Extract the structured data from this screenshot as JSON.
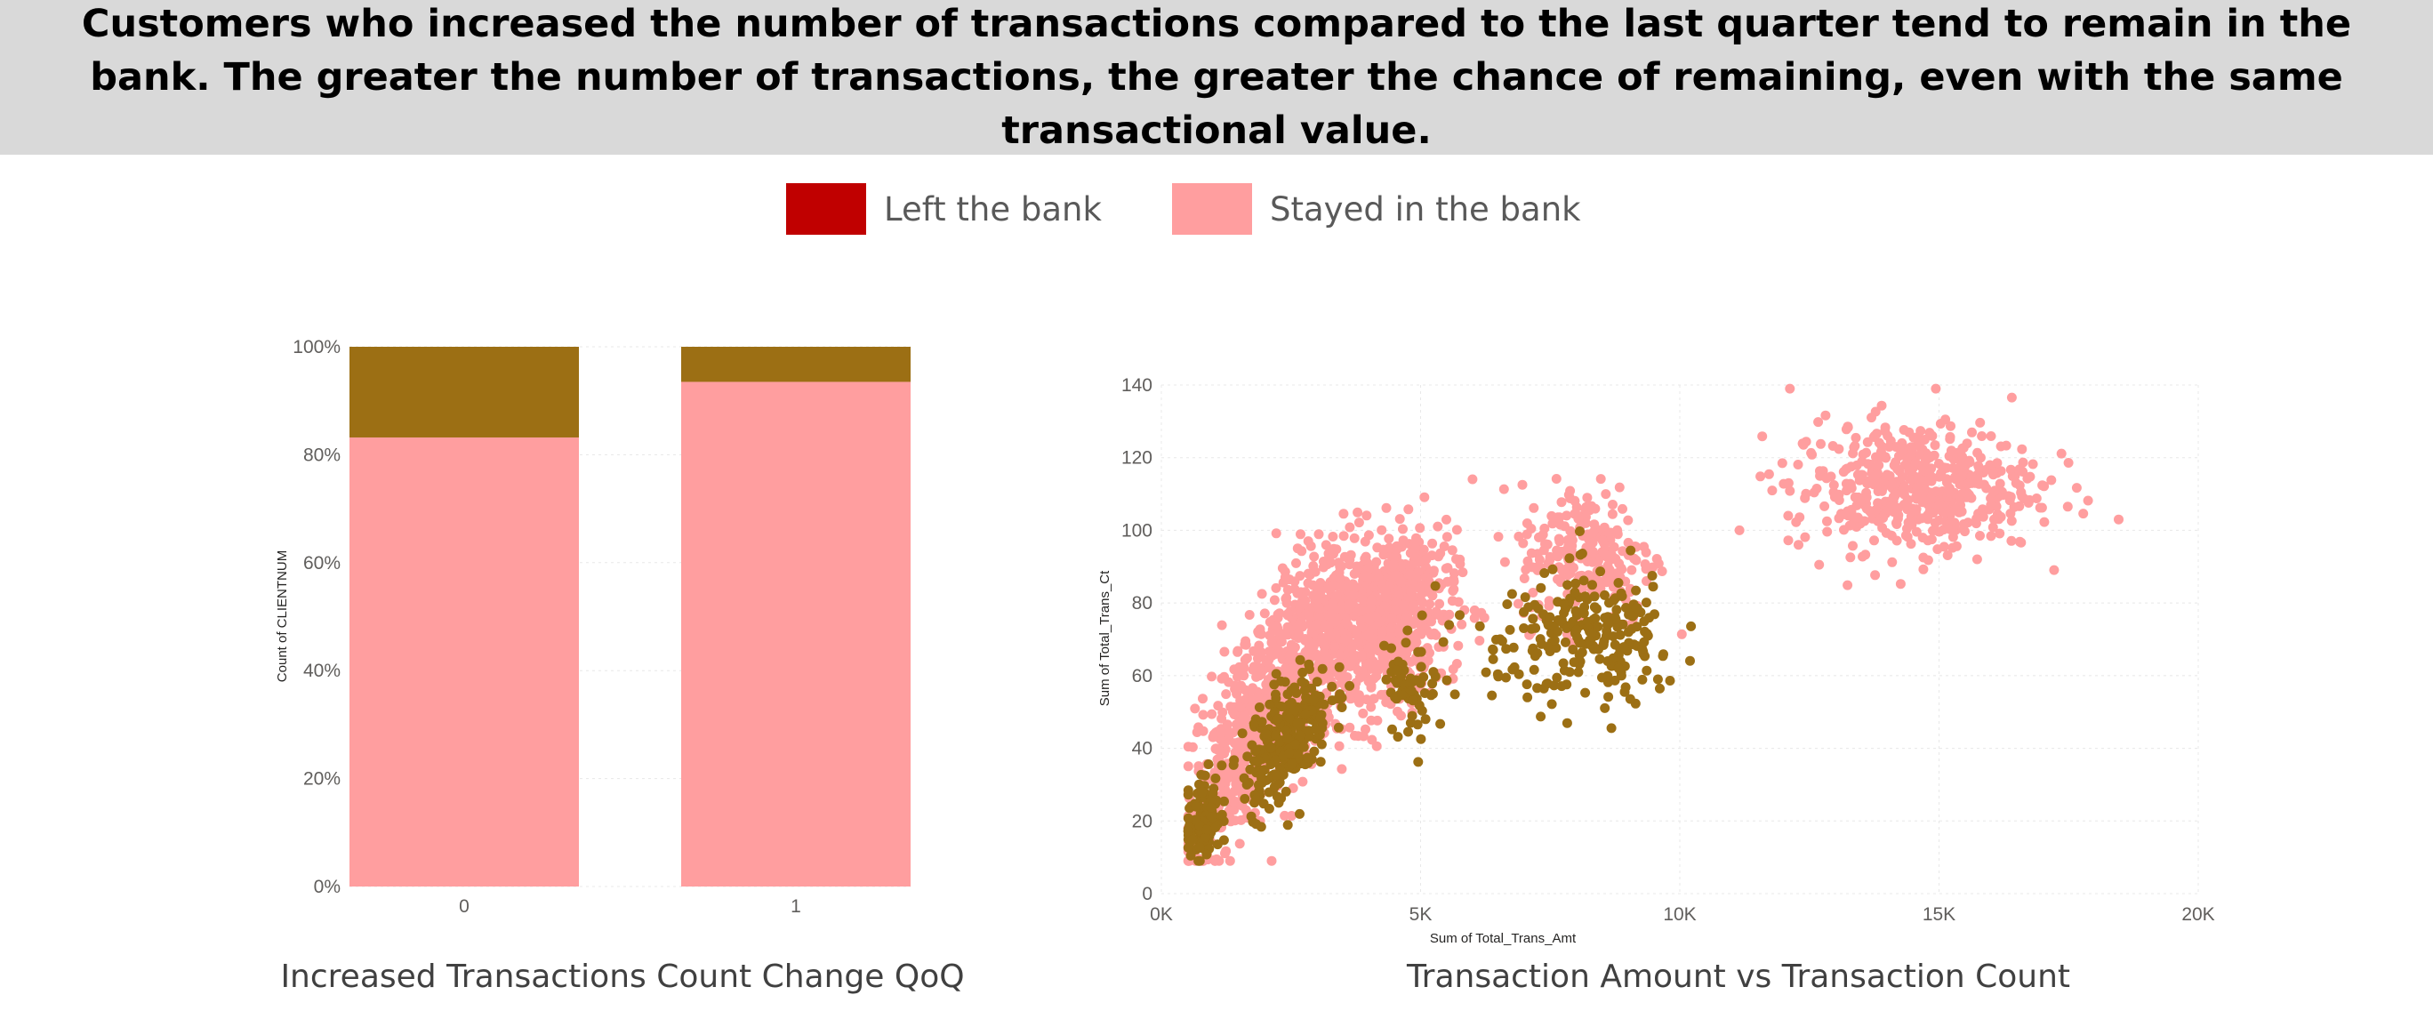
{
  "header": {
    "text": "Customers who increased the number of transactions compared to the last quarter tend to remain in the bank. The greater the number of transactions, the greater the chance of remaining, even with the same transactional value."
  },
  "legend": {
    "items": [
      {
        "label": "Left the bank",
        "color": "#c00000"
      },
      {
        "label": "Stayed in the bank",
        "color": "#ff9e9f"
      }
    ]
  },
  "colors": {
    "attrited": "#9c6f14",
    "existing": "#ff9e9f",
    "gridline": "#e8e8e8"
  },
  "chart_data": [
    {
      "type": "bar",
      "stacked": "100%",
      "title": "Increased Transactions Count Change QoQ",
      "xlabel": "",
      "ylabel": "Count of CLIENTNUM",
      "categories": [
        "0",
        "1"
      ],
      "series": [
        {
          "key": "existing",
          "values": [
            83.2,
            93.5
          ]
        },
        {
          "key": "attrited",
          "values": [
            16.8,
            6.5
          ]
        }
      ],
      "yticks": [
        "0%",
        "20%",
        "40%",
        "60%",
        "80%",
        "100%"
      ],
      "ylim": [
        0,
        100
      ],
      "grid": true
    },
    {
      "type": "scatter",
      "title": "Transaction Amount vs Transaction Count",
      "xlabel": "Sum of Total_Trans_Amt",
      "ylabel": "Sum of Total_Trans_Ct",
      "xlim": [
        0,
        20000
      ],
      "ylim": [
        0,
        140
      ],
      "xticks": [
        {
          "value": 0,
          "label": "0K"
        },
        {
          "value": 5000,
          "label": "5K"
        },
        {
          "value": 10000,
          "label": "10K"
        },
        {
          "value": 15000,
          "label": "15K"
        },
        {
          "value": 20000,
          "label": "20K"
        }
      ],
      "yticks": [
        0,
        20,
        40,
        60,
        80,
        100,
        120,
        140
      ],
      "grid": true,
      "clusters": [
        {
          "series": "existing",
          "cx": 900,
          "cy": 20,
          "sx": 300,
          "sy": 7,
          "n": 60
        },
        {
          "series": "existing",
          "cx": 1500,
          "cy": 40,
          "sx": 450,
          "sy": 12,
          "n": 260
        },
        {
          "series": "existing",
          "cx": 2500,
          "cy": 60,
          "sx": 650,
          "sy": 13,
          "n": 420
        },
        {
          "series": "existing",
          "cx": 3800,
          "cy": 72,
          "sx": 700,
          "sy": 12,
          "n": 520
        },
        {
          "series": "existing",
          "cx": 4600,
          "cy": 80,
          "sx": 550,
          "sy": 10,
          "n": 320
        },
        {
          "series": "existing",
          "cx": 8200,
          "cy": 93,
          "sx": 650,
          "sy": 10,
          "n": 230
        },
        {
          "series": "existing",
          "cx": 14500,
          "cy": 112,
          "sx": 1200,
          "sy": 9,
          "n": 500
        },
        {
          "series": "attrited",
          "cx": 800,
          "cy": 20,
          "sx": 170,
          "sy": 6,
          "n": 110
        },
        {
          "series": "attrited",
          "cx": 2400,
          "cy": 43,
          "sx": 420,
          "sy": 8,
          "n": 260
        },
        {
          "series": "attrited",
          "cx": 4800,
          "cy": 55,
          "sx": 250,
          "sy": 6,
          "n": 50
        },
        {
          "series": "attrited",
          "cx": 6200,
          "cy": 66,
          "sx": 900,
          "sy": 10,
          "n": 40
        },
        {
          "series": "attrited",
          "cx": 8400,
          "cy": 70,
          "sx": 800,
          "sy": 9,
          "n": 210
        }
      ]
    }
  ]
}
